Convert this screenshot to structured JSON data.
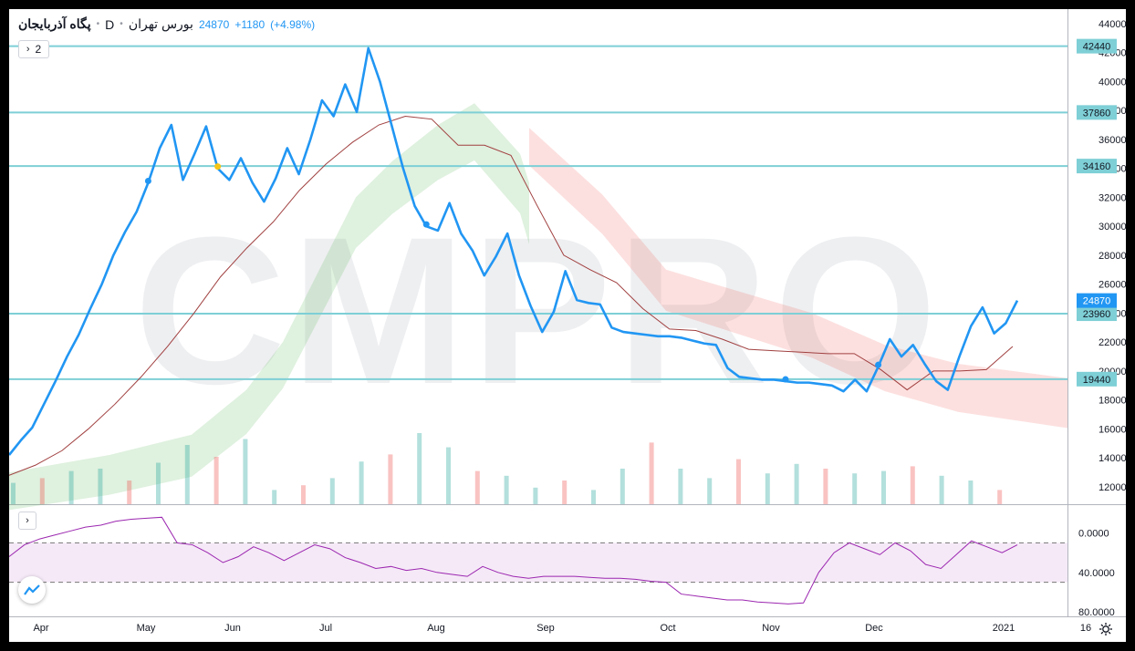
{
  "header": {
    "symbol": "پگاه آذربایجان",
    "interval": "D",
    "exchange": "بورس تهران",
    "last": "24870",
    "change": "+1180",
    "change_pct": "(+4.98%)"
  },
  "controls": {
    "collapse_label": "2"
  },
  "watermark": "CMPRO",
  "chart_data": {
    "type": "line",
    "price_axis": {
      "ylim": [
        10800,
        45000
      ],
      "ticks": [
        12000,
        14000,
        16000,
        18000,
        20000,
        22000,
        24000,
        26000,
        28000,
        30000,
        32000,
        34000,
        36000,
        38000,
        40000,
        42000,
        44000
      ]
    },
    "time_axis": {
      "labels": [
        "Apr",
        "May",
        "Jun",
        "Jul",
        "Aug",
        "Sep",
        "Oct",
        "Nov",
        "Dec",
        "2021",
        "16"
      ]
    },
    "horizontal_levels": [
      42440,
      37860,
      34160,
      23960,
      19440
    ],
    "last_price": 24870,
    "series": [
      {
        "values": [
          14200,
          15200,
          16100,
          17700,
          19300,
          21000,
          22500,
          24300,
          26000,
          28000,
          29600,
          31000,
          33000,
          35400,
          37000,
          33200,
          35000,
          36900,
          34000,
          33200,
          34700,
          33000,
          31700,
          33300,
          35400,
          33600,
          36000,
          38700,
          37600,
          39800,
          37900,
          42300,
          40000,
          37000,
          34000,
          31400,
          30000,
          29700,
          31600,
          29500,
          28300,
          26600,
          27900,
          29500,
          26600,
          24500,
          22700,
          24100,
          26900,
          24900,
          24700,
          24600,
          23000,
          22700,
          22600,
          22500,
          22400,
          22400,
          22300,
          22100,
          21900,
          21800,
          20200,
          19600,
          19500,
          19400,
          19400,
          19300,
          19200,
          19200,
          19100,
          19000,
          18600,
          19400,
          18600,
          20300,
          22200,
          21000,
          21800,
          20500,
          19300,
          18700,
          21000,
          23100,
          24400,
          22600,
          23300,
          24870
        ]
      },
      {
        "values": [
          12800,
          13500,
          14500,
          16000,
          17700,
          19600,
          21700,
          24000,
          26500,
          28500,
          30300,
          32500,
          34300,
          35800,
          37000,
          37600,
          37400,
          35600,
          35600,
          34900,
          31400,
          28000,
          27000,
          26100,
          24300,
          22900,
          22800,
          22200,
          21500,
          21400,
          21300,
          21200,
          21200,
          20100,
          18700,
          20000,
          20000,
          20100,
          21700
        ]
      }
    ],
    "ichimoku_cloud": [
      {
        "color": "#4caf50",
        "upper": [
          13000,
          14200,
          15600,
          18700,
          22000,
          27000,
          32000,
          34500,
          37000,
          38500,
          35000,
          33000
        ]
      },
      {
        "color": "#ef5350",
        "upper": [
          36800,
          32200,
          27000,
          25500,
          24000,
          21800,
          20500,
          19500
        ]
      }
    ],
    "volume": {
      "values": [
        18,
        22,
        28,
        30,
        20,
        35,
        50,
        40,
        55,
        12,
        16,
        22,
        36,
        42,
        60,
        48,
        28,
        24,
        14,
        20,
        12,
        30,
        52,
        30,
        22,
        38,
        26,
        34,
        30,
        26,
        28,
        32,
        24,
        20,
        12
      ]
    },
    "rsi": {
      "ylim": [
        0,
        100
      ],
      "ticks": [
        0,
        40,
        80
      ],
      "bands": [
        30,
        70
      ],
      "values": [
        56,
        68,
        74,
        78,
        82,
        86,
        88,
        92,
        94,
        95,
        96,
        70,
        68,
        60,
        50,
        56,
        66,
        60,
        52,
        60,
        68,
        64,
        55,
        50,
        44,
        46,
        42,
        44,
        40,
        38,
        36,
        46,
        40,
        36,
        34,
        36,
        36,
        36,
        35,
        34,
        34,
        33,
        31,
        30,
        18,
        16,
        14,
        12,
        12,
        10,
        9,
        8,
        9,
        40,
        60,
        70,
        64,
        58,
        70,
        62,
        48,
        44,
        58,
        72,
        66,
        60,
        68
      ]
    },
    "rsi_labels": [
      "80.0000",
      "40.0000",
      "0.0000"
    ]
  }
}
